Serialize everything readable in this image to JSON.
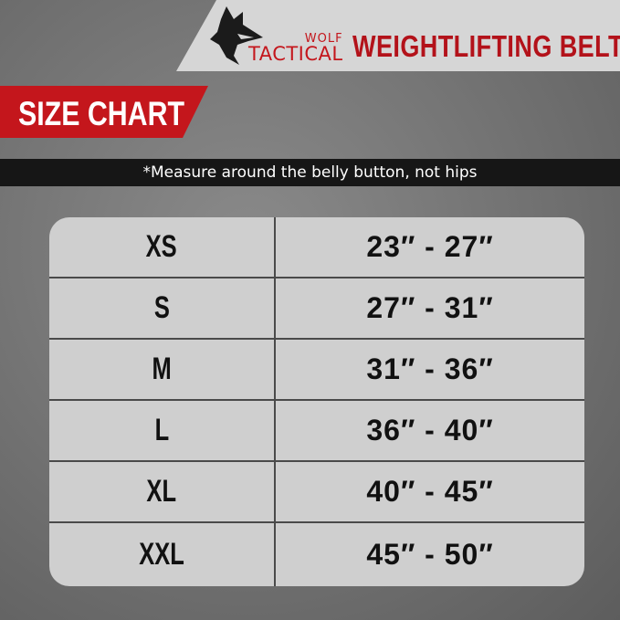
{
  "header": {
    "brand_top": "WOLF",
    "brand_bottom": "TACTICAL",
    "product_title": "WEIGHTLIFTING BELT"
  },
  "banner": {
    "title": "SIZE CHART"
  },
  "note": "*Measure around the belly button, not hips",
  "colors": {
    "accent": "#c4161c",
    "table_bg": "#cfcfcf",
    "note_bar": "#161616"
  },
  "rows": [
    {
      "size": "XS",
      "range": "23″  -  27″"
    },
    {
      "size": "S",
      "range": "27″  -  31″"
    },
    {
      "size": "M",
      "range": "31″  -  36″"
    },
    {
      "size": "L",
      "range": "36″  -  40″"
    },
    {
      "size": "XL",
      "range": "40″  -  45″"
    },
    {
      "size": "XXL",
      "range": "45″  -  50″"
    }
  ]
}
